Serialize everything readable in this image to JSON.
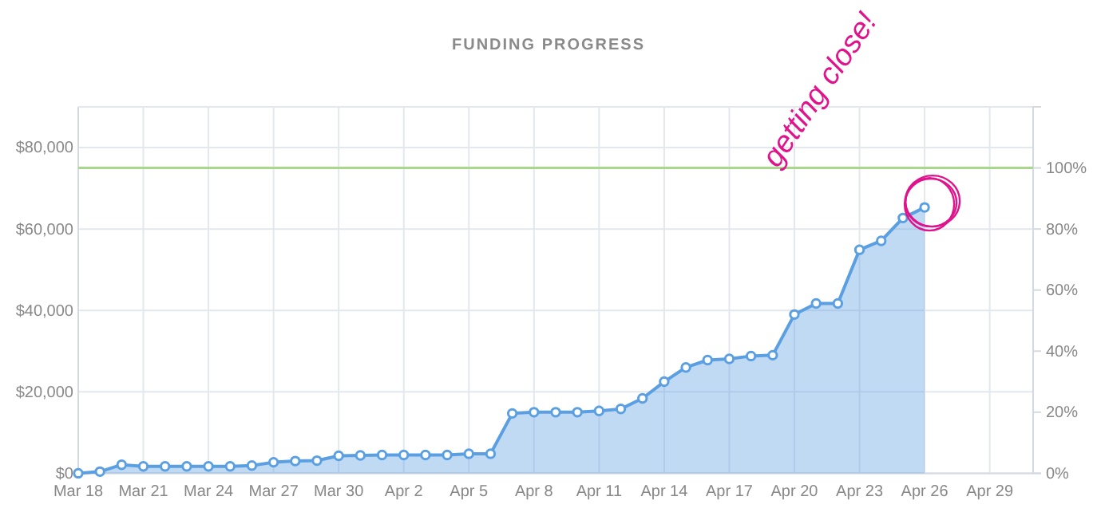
{
  "chart_data": {
    "type": "area",
    "title": "FUNDING PROGRESS",
    "x": [
      "--03-18",
      "--03-19",
      "--03-20",
      "--03-21",
      "--03-22",
      "--03-23",
      "--03-24",
      "--03-25",
      "--03-26",
      "--03-27",
      "--03-28",
      "--03-29",
      "--03-30",
      "--03-31",
      "--04-01",
      "--04-02",
      "--04-03",
      "--04-04",
      "--04-05",
      "--04-06",
      "--04-07",
      "--04-08",
      "--04-09",
      "--04-10",
      "--04-11",
      "--04-12",
      "--04-13",
      "--04-14",
      "--04-15",
      "--04-16",
      "--04-17",
      "--04-18",
      "--04-19",
      "--04-20",
      "--04-21",
      "--04-22",
      "--04-23",
      "--04-24",
      "--04-25",
      "--04-26"
    ],
    "series": [
      {
        "color": "#5b9fe3",
        "values": [
          0,
          400,
          2100,
          1700,
          1700,
          1700,
          1700,
          1700,
          1900,
          2700,
          3000,
          3100,
          4300,
          4400,
          4500,
          4500,
          4500,
          4500,
          4800,
          4800,
          14700,
          15000,
          15000,
          15000,
          15300,
          15800,
          18400,
          22500,
          26000,
          27800,
          28100,
          28800,
          29000,
          39000,
          41700,
          41700,
          54900,
          57100,
          62700,
          65300
        ]
      }
    ],
    "xlim": [
      "--03-18",
      "--05-01"
    ],
    "xticks": [
      {
        "value": "--03-18",
        "label": "Mar 18"
      },
      {
        "value": "--03-21",
        "label": "Mar 21"
      },
      {
        "value": "--03-24",
        "label": "Mar 24"
      },
      {
        "value": "--03-27",
        "label": "Mar 27"
      },
      {
        "value": "--03-30",
        "label": "Mar 30"
      },
      {
        "value": "--04-02",
        "label": "Apr 2"
      },
      {
        "value": "--04-05",
        "label": "Apr 5"
      },
      {
        "value": "--04-08",
        "label": "Apr 8"
      },
      {
        "value": "--04-11",
        "label": "Apr 11"
      },
      {
        "value": "--04-14",
        "label": "Apr 14"
      },
      {
        "value": "--04-17",
        "label": "Apr 17"
      },
      {
        "value": "--04-20",
        "label": "Apr 20"
      },
      {
        "value": "--04-23",
        "label": "Apr 23"
      },
      {
        "value": "--04-26",
        "label": "Apr 26"
      },
      {
        "value": "--04-29",
        "label": "Apr 29"
      }
    ],
    "ylim": [
      0,
      90000
    ],
    "yticks": [
      {
        "value": 0,
        "label": "$0"
      },
      {
        "value": 20000,
        "label": "$20,000"
      },
      {
        "value": 40000,
        "label": "$40,000"
      },
      {
        "value": 60000,
        "label": "$60,000"
      },
      {
        "value": 80000,
        "label": "$80,000"
      }
    ],
    "y2lim": [
      0,
      120
    ],
    "y2ticks": [
      {
        "value": 0,
        "label": "0%"
      },
      {
        "value": 20,
        "label": "20%"
      },
      {
        "value": 40,
        "label": "40%"
      },
      {
        "value": 60,
        "label": "60%"
      },
      {
        "value": 80,
        "label": "80%"
      },
      {
        "value": 100,
        "label": "100%"
      }
    ],
    "ref_lines": [
      {
        "axis": "y",
        "value": 75000,
        "color": "#a8d88c"
      }
    ],
    "annotations": [
      {
        "text": "getting close!",
        "x": "--04-26",
        "y": 65300
      }
    ],
    "grid": true,
    "marker": "circle"
  }
}
